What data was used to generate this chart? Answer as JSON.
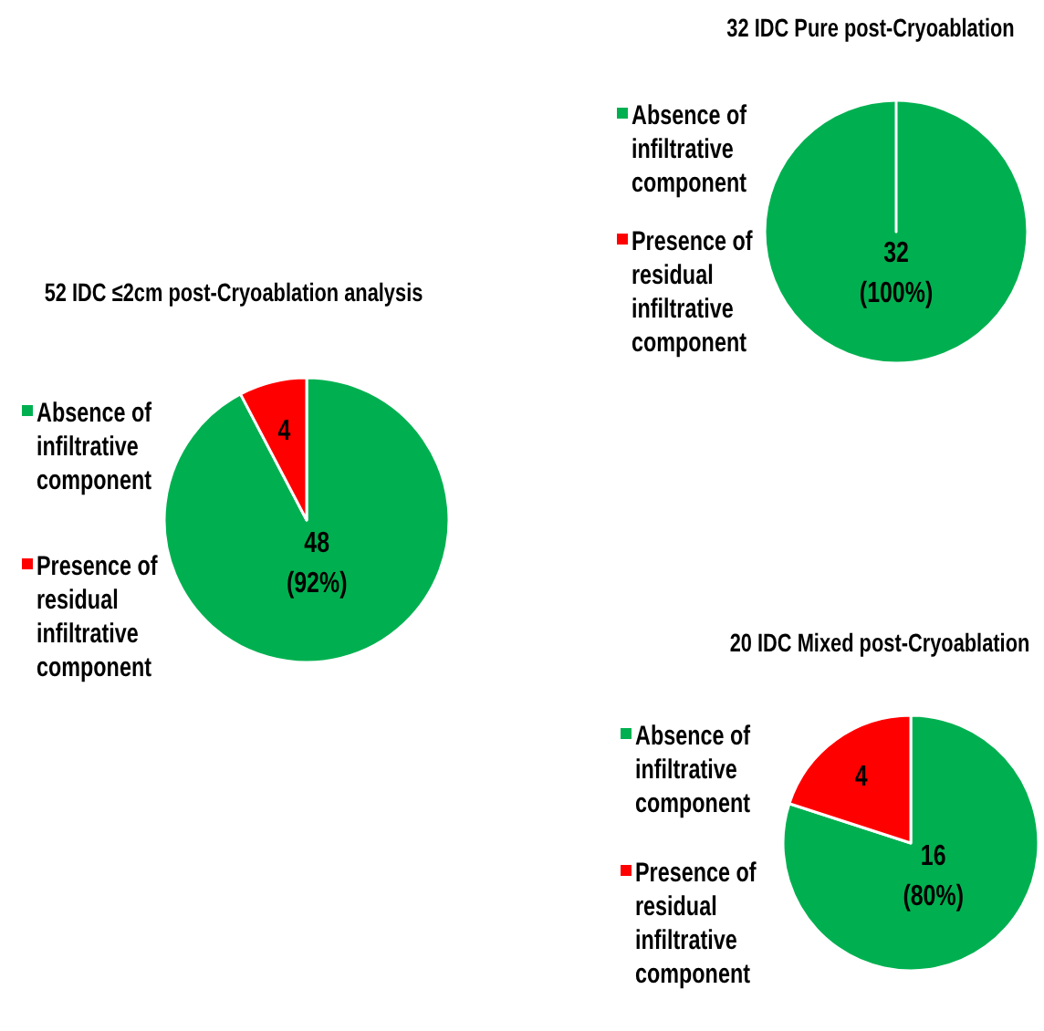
{
  "chart_data": [
    {
      "type": "pie",
      "title": "52 IDC ≤2cm post-Cryoablation analysis",
      "categories": [
        "Absence of infiltrative component",
        "Presence of residual infiltrative component"
      ],
      "values": [
        48,
        4
      ],
      "colors": [
        "#00b050",
        "#ff0000"
      ],
      "value_labels": [
        "48\n(92%)",
        "4"
      ],
      "legend": "left"
    },
    {
      "type": "pie",
      "title": "32 IDC Pure post-Cryoablation",
      "categories": [
        "Absence of infiltrative component",
        "Presence of residual infiltrative component"
      ],
      "values": [
        32,
        0
      ],
      "colors": [
        "#00b050",
        "#ff0000"
      ],
      "value_labels": [
        "32\n(100%)",
        null
      ],
      "legend": "left"
    },
    {
      "type": "pie",
      "title": "20 IDC Mixed post-Cryoablation",
      "categories": [
        "Absence of infiltrative component",
        "Presence of residual infiltrative component"
      ],
      "values": [
        16,
        4
      ],
      "colors": [
        "#00b050",
        "#ff0000"
      ],
      "value_labels": [
        "16\n(80%)",
        "4"
      ],
      "legend": "left"
    }
  ]
}
